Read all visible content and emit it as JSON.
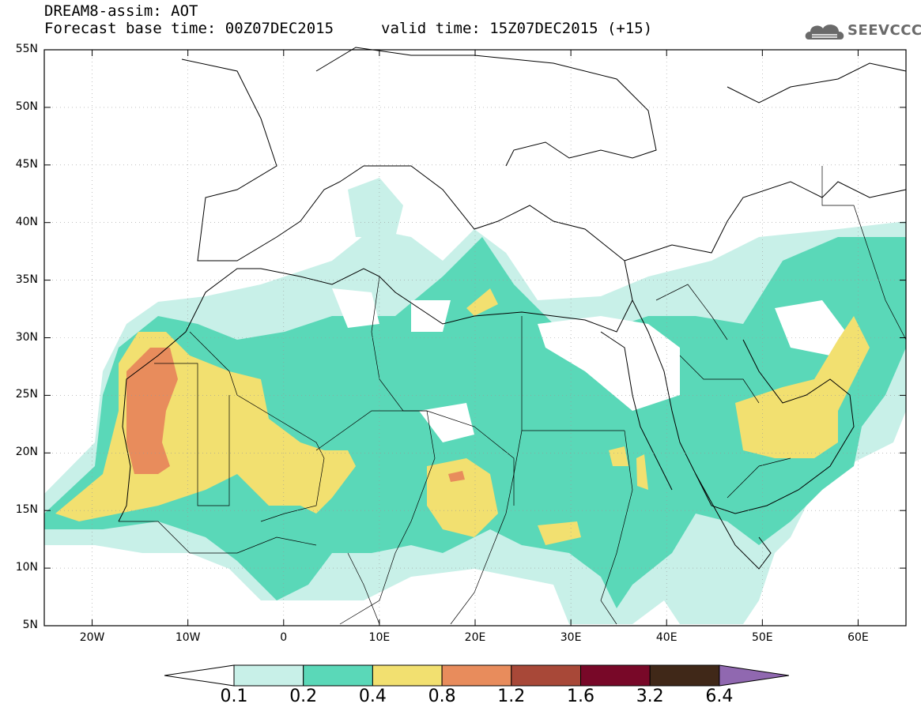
{
  "header": {
    "title": "DREAM8-assim: AOT",
    "base_time": "Forecast base time: 00Z07DEC2015",
    "valid_time": "valid time: 15Z07DEC2015 (+15)"
  },
  "logo": {
    "text": "SEEVCCC",
    "icon": "cloud-logo-icon"
  },
  "map": {
    "projection": "lat-lon",
    "lon_range": [
      -25,
      65
    ],
    "lat_range": [
      5,
      55
    ],
    "lat_labels": [
      "55N",
      "50N",
      "45N",
      "40N",
      "35N",
      "30N",
      "25N",
      "20N",
      "15N",
      "10N",
      "5N"
    ],
    "lat_values": [
      55,
      50,
      45,
      40,
      35,
      30,
      25,
      20,
      15,
      10,
      5
    ],
    "lon_labels": [
      "20W",
      "10W",
      "0",
      "10E",
      "20E",
      "30E",
      "40E",
      "50E",
      "60E"
    ],
    "lon_values": [
      -20,
      -10,
      0,
      10,
      20,
      30,
      40,
      50,
      60
    ]
  },
  "colorbar": {
    "labels": [
      "0.1",
      "0.2",
      "0.4",
      "0.8",
      "1.2",
      "1.6",
      "3.2",
      "6.4"
    ],
    "colors": [
      "#c8f0e8",
      "#5ad8b8",
      "#f2e070",
      "#e88c5c",
      "#a84838",
      "#780828",
      "#402818",
      "#9068b0"
    ],
    "under_color": "#ffffff"
  }
}
